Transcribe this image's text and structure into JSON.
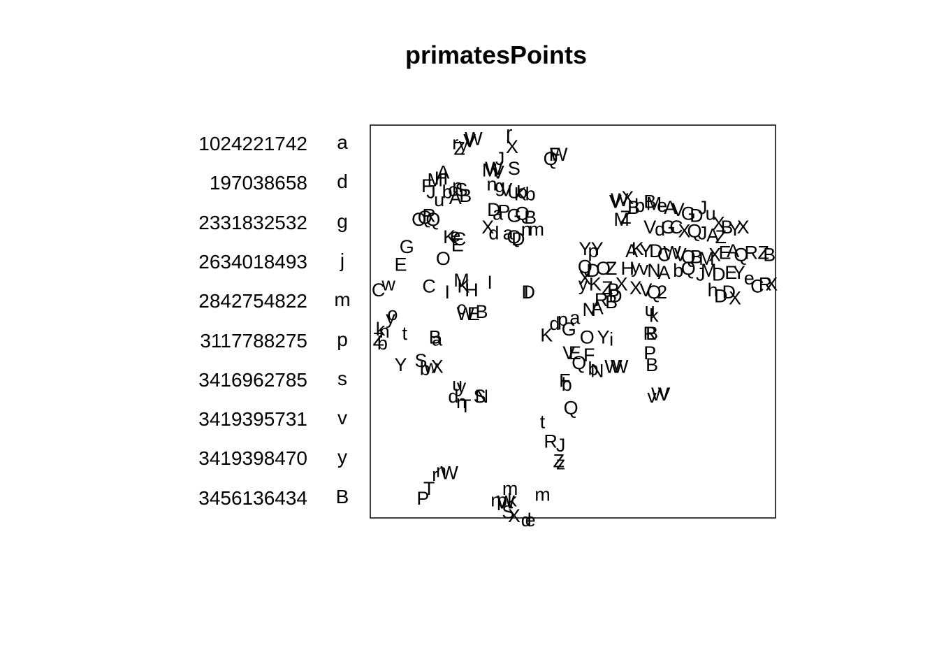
{
  "chart_data": {
    "type": "scatter",
    "title": "primatesPoints",
    "xlabel": "",
    "ylabel": "",
    "xlim": [
      0,
      100
    ],
    "ylim": [
      0,
      100
    ],
    "axes": "none",
    "grid": false,
    "legend": {
      "placement": "left",
      "ids": [
        "1024221742",
        "197038658",
        "2331832532",
        "2634018493",
        "2842754822",
        "3117788275",
        "3416962785",
        "3419395731",
        "3419398470",
        "3456136434"
      ],
      "codes": [
        "a",
        "d",
        "g",
        "j",
        "m",
        "p",
        "s",
        "v",
        "y",
        "B"
      ]
    },
    "points": [
      {
        "x": 34.3,
        "y": 98.0,
        "label": "r"
      },
      {
        "x": 35.0,
        "y": 94.5,
        "label": "X"
      },
      {
        "x": 34.0,
        "y": 97.0,
        "label": "I"
      },
      {
        "x": 21.0,
        "y": 95.5,
        "label": "r"
      },
      {
        "x": 22.0,
        "y": 94.0,
        "label": "Z"
      },
      {
        "x": 23.0,
        "y": 95.0,
        "label": "y"
      },
      {
        "x": 25.5,
        "y": 96.5,
        "label": "W"
      },
      {
        "x": 24.5,
        "y": 96.0,
        "label": "V"
      },
      {
        "x": 32.0,
        "y": 91.5,
        "label": "J"
      },
      {
        "x": 35.5,
        "y": 89.0,
        "label": "S"
      },
      {
        "x": 29.5,
        "y": 88.5,
        "label": "M"
      },
      {
        "x": 30.5,
        "y": 89.0,
        "label": "W"
      },
      {
        "x": 31.5,
        "y": 88.0,
        "label": "V"
      },
      {
        "x": 44.5,
        "y": 91.5,
        "label": "Q"
      },
      {
        "x": 45.5,
        "y": 92.5,
        "label": "F"
      },
      {
        "x": 46.5,
        "y": 92.5,
        "label": "W"
      },
      {
        "x": 18.0,
        "y": 88.0,
        "label": "A"
      },
      {
        "x": 17.5,
        "y": 86.5,
        "label": "H"
      },
      {
        "x": 16.0,
        "y": 86.0,
        "label": "M"
      },
      {
        "x": 14.0,
        "y": 84.5,
        "label": "F"
      },
      {
        "x": 15.0,
        "y": 83.0,
        "label": "J"
      },
      {
        "x": 17.0,
        "y": 81.0,
        "label": "u"
      },
      {
        "x": 21.0,
        "y": 81.5,
        "label": "A"
      },
      {
        "x": 19.0,
        "y": 83.0,
        "label": "b"
      },
      {
        "x": 20.5,
        "y": 83.5,
        "label": "o"
      },
      {
        "x": 23.5,
        "y": 82.0,
        "label": "B"
      },
      {
        "x": 22.5,
        "y": 83.5,
        "label": "S"
      },
      {
        "x": 21.5,
        "y": 84.5,
        "label": "n"
      },
      {
        "x": 30.0,
        "y": 85.0,
        "label": "n"
      },
      {
        "x": 32.0,
        "y": 84.5,
        "label": "g"
      },
      {
        "x": 33.5,
        "y": 83.5,
        "label": "V"
      },
      {
        "x": 35.5,
        "y": 83.0,
        "label": "U"
      },
      {
        "x": 37.5,
        "y": 83.0,
        "label": "o"
      },
      {
        "x": 39.5,
        "y": 82.5,
        "label": "b"
      },
      {
        "x": 37.0,
        "y": 82.5,
        "label": "K"
      },
      {
        "x": 13.5,
        "y": 76.5,
        "label": "Q"
      },
      {
        "x": 14.5,
        "y": 77.0,
        "label": "R"
      },
      {
        "x": 15.5,
        "y": 76.0,
        "label": "Q"
      },
      {
        "x": 12.0,
        "y": 76.0,
        "label": "O"
      },
      {
        "x": 30.5,
        "y": 78.5,
        "label": "D"
      },
      {
        "x": 31.5,
        "y": 77.5,
        "label": "a"
      },
      {
        "x": 33.0,
        "y": 78.0,
        "label": "P"
      },
      {
        "x": 35.5,
        "y": 77.0,
        "label": "G"
      },
      {
        "x": 37.5,
        "y": 77.5,
        "label": "Q"
      },
      {
        "x": 39.5,
        "y": 76.5,
        "label": "B"
      },
      {
        "x": 29.0,
        "y": 74.0,
        "label": "X"
      },
      {
        "x": 30.5,
        "y": 72.5,
        "label": "d"
      },
      {
        "x": 34.0,
        "y": 72.5,
        "label": "a"
      },
      {
        "x": 35.5,
        "y": 71.5,
        "label": "Q"
      },
      {
        "x": 36.5,
        "y": 71.0,
        "label": "D"
      },
      {
        "x": 38.5,
        "y": 73.5,
        "label": "n"
      },
      {
        "x": 41.0,
        "y": 73.5,
        "label": "m"
      },
      {
        "x": 19.5,
        "y": 71.5,
        "label": "K"
      },
      {
        "x": 21.0,
        "y": 72.0,
        "label": "e"
      },
      {
        "x": 22.0,
        "y": 71.0,
        "label": "C"
      },
      {
        "x": 21.5,
        "y": 69.5,
        "label": "E"
      },
      {
        "x": 9.0,
        "y": 69.0,
        "label": "G"
      },
      {
        "x": 18.0,
        "y": 66.0,
        "label": "O"
      },
      {
        "x": 7.5,
        "y": 64.5,
        "label": "E"
      },
      {
        "x": 2.0,
        "y": 58.0,
        "label": "C"
      },
      {
        "x": 4.5,
        "y": 59.5,
        "label": "w"
      },
      {
        "x": 14.5,
        "y": 59.0,
        "label": "C"
      },
      {
        "x": 19.0,
        "y": 57.5,
        "label": "I"
      },
      {
        "x": 22.5,
        "y": 60.5,
        "label": "M"
      },
      {
        "x": 23.0,
        "y": 59.0,
        "label": "K"
      },
      {
        "x": 25.0,
        "y": 58.0,
        "label": "H"
      },
      {
        "x": 29.5,
        "y": 60.0,
        "label": "I"
      },
      {
        "x": 39.0,
        "y": 57.5,
        "label": "D"
      },
      {
        "x": 38.5,
        "y": 57.5,
        "label": "I"
      },
      {
        "x": 22.5,
        "y": 53.5,
        "label": "c"
      },
      {
        "x": 23.5,
        "y": 52.0,
        "label": "W"
      },
      {
        "x": 25.5,
        "y": 52.0,
        "label": "E"
      },
      {
        "x": 27.5,
        "y": 52.5,
        "label": "B"
      },
      {
        "x": 5.5,
        "y": 52.0,
        "label": "o"
      },
      {
        "x": 5.0,
        "y": 51.0,
        "label": "y"
      },
      {
        "x": 2.5,
        "y": 48.0,
        "label": "k"
      },
      {
        "x": 3.5,
        "y": 47.5,
        "label": "n"
      },
      {
        "x": 8.5,
        "y": 47.0,
        "label": "t"
      },
      {
        "x": 2.0,
        "y": 45.5,
        "label": "Z"
      },
      {
        "x": 3.0,
        "y": 44.5,
        "label": "b"
      },
      {
        "x": 16.0,
        "y": 46.0,
        "label": "B"
      },
      {
        "x": 16.5,
        "y": 45.5,
        "label": "a"
      },
      {
        "x": 12.5,
        "y": 40.0,
        "label": "S"
      },
      {
        "x": 7.5,
        "y": 39.0,
        "label": "Y"
      },
      {
        "x": 13.5,
        "y": 38.0,
        "label": "b"
      },
      {
        "x": 15.0,
        "y": 38.5,
        "label": "w"
      },
      {
        "x": 16.5,
        "y": 38.5,
        "label": "X"
      },
      {
        "x": 22.5,
        "y": 33.5,
        "label": "y"
      },
      {
        "x": 21.5,
        "y": 34.0,
        "label": "u"
      },
      {
        "x": 20.5,
        "y": 31.0,
        "label": "d"
      },
      {
        "x": 22.5,
        "y": 29.5,
        "label": "n"
      },
      {
        "x": 23.5,
        "y": 28.5,
        "label": "T"
      },
      {
        "x": 27.5,
        "y": 31.0,
        "label": "N"
      },
      {
        "x": 27.0,
        "y": 31.0,
        "label": "S"
      },
      {
        "x": 43.5,
        "y": 46.5,
        "label": "K"
      },
      {
        "x": 45.5,
        "y": 49.5,
        "label": "d"
      },
      {
        "x": 47.5,
        "y": 50.5,
        "label": "p"
      },
      {
        "x": 50.5,
        "y": 51.0,
        "label": "a"
      },
      {
        "x": 49.0,
        "y": 48.0,
        "label": "G"
      },
      {
        "x": 53.5,
        "y": 46.0,
        "label": "O"
      },
      {
        "x": 57.5,
        "y": 46.0,
        "label": "Y"
      },
      {
        "x": 59.5,
        "y": 45.5,
        "label": "i"
      },
      {
        "x": 49.0,
        "y": 42.0,
        "label": "V"
      },
      {
        "x": 50.5,
        "y": 42.0,
        "label": "E"
      },
      {
        "x": 54.0,
        "y": 41.5,
        "label": "F"
      },
      {
        "x": 51.5,
        "y": 39.5,
        "label": "Q"
      },
      {
        "x": 55.0,
        "y": 38.0,
        "label": "b"
      },
      {
        "x": 56.0,
        "y": 37.5,
        "label": "N"
      },
      {
        "x": 60.0,
        "y": 38.5,
        "label": "W"
      },
      {
        "x": 61.5,
        "y": 38.5,
        "label": "W"
      },
      {
        "x": 48.0,
        "y": 35.0,
        "label": "F"
      },
      {
        "x": 48.5,
        "y": 34.0,
        "label": "b"
      },
      {
        "x": 49.5,
        "y": 28.0,
        "label": "Q"
      },
      {
        "x": 42.5,
        "y": 24.5,
        "label": "t"
      },
      {
        "x": 44.5,
        "y": 19.5,
        "label": "R"
      },
      {
        "x": 47.0,
        "y": 18.5,
        "label": "J"
      },
      {
        "x": 46.5,
        "y": 14.5,
        "label": "Z"
      },
      {
        "x": 47.0,
        "y": 14.0,
        "label": "z"
      },
      {
        "x": 53.0,
        "y": 68.5,
        "label": "Y"
      },
      {
        "x": 55.0,
        "y": 68.0,
        "label": "p"
      },
      {
        "x": 56.0,
        "y": 68.5,
        "label": "Y"
      },
      {
        "x": 53.0,
        "y": 64.0,
        "label": "Q"
      },
      {
        "x": 55.0,
        "y": 63.0,
        "label": "D"
      },
      {
        "x": 57.5,
        "y": 63.5,
        "label": "O"
      },
      {
        "x": 59.5,
        "y": 63.5,
        "label": "Z"
      },
      {
        "x": 53.0,
        "y": 61.0,
        "label": "X"
      },
      {
        "x": 55.5,
        "y": 59.5,
        "label": "K"
      },
      {
        "x": 58.5,
        "y": 58.5,
        "label": "Z"
      },
      {
        "x": 60.0,
        "y": 58.0,
        "label": "B"
      },
      {
        "x": 62.0,
        "y": 59.5,
        "label": "X"
      },
      {
        "x": 52.5,
        "y": 59.5,
        "label": "y"
      },
      {
        "x": 54.0,
        "y": 53.0,
        "label": "N"
      },
      {
        "x": 56.0,
        "y": 53.5,
        "label": "A"
      },
      {
        "x": 57.0,
        "y": 55.5,
        "label": "R"
      },
      {
        "x": 59.5,
        "y": 55.0,
        "label": "B"
      },
      {
        "x": 60.5,
        "y": 56.5,
        "label": "D"
      },
      {
        "x": 62.0,
        "y": 76.0,
        "label": "M"
      },
      {
        "x": 63.0,
        "y": 76.5,
        "label": "Z"
      },
      {
        "x": 60.5,
        "y": 80.5,
        "label": "V"
      },
      {
        "x": 61.5,
        "y": 81.0,
        "label": "W"
      },
      {
        "x": 63.5,
        "y": 81.5,
        "label": "X"
      },
      {
        "x": 65.0,
        "y": 79.0,
        "label": "B"
      },
      {
        "x": 66.5,
        "y": 79.5,
        "label": "b"
      },
      {
        "x": 69.0,
        "y": 80.5,
        "label": "B"
      },
      {
        "x": 70.0,
        "y": 80.0,
        "label": "M"
      },
      {
        "x": 72.0,
        "y": 79.5,
        "label": "e"
      },
      {
        "x": 74.0,
        "y": 79.0,
        "label": "A"
      },
      {
        "x": 76.0,
        "y": 78.5,
        "label": "V"
      },
      {
        "x": 78.5,
        "y": 77.5,
        "label": "G"
      },
      {
        "x": 80.5,
        "y": 77.0,
        "label": "D"
      },
      {
        "x": 82.0,
        "y": 79.0,
        "label": "J"
      },
      {
        "x": 84.0,
        "y": 77.5,
        "label": "u"
      },
      {
        "x": 86.0,
        "y": 75.0,
        "label": "X"
      },
      {
        "x": 88.0,
        "y": 74.0,
        "label": "B"
      },
      {
        "x": 90.0,
        "y": 73.5,
        "label": "Y"
      },
      {
        "x": 92.0,
        "y": 74.0,
        "label": "X"
      },
      {
        "x": 69.0,
        "y": 74.0,
        "label": "V"
      },
      {
        "x": 71.5,
        "y": 73.5,
        "label": "d"
      },
      {
        "x": 73.5,
        "y": 74.0,
        "label": "G"
      },
      {
        "x": 75.5,
        "y": 74.0,
        "label": "C"
      },
      {
        "x": 77.5,
        "y": 73.0,
        "label": "X"
      },
      {
        "x": 80.0,
        "y": 73.0,
        "label": "Q"
      },
      {
        "x": 82.0,
        "y": 72.5,
        "label": "J"
      },
      {
        "x": 84.5,
        "y": 72.0,
        "label": "A"
      },
      {
        "x": 86.5,
        "y": 71.5,
        "label": "Z"
      },
      {
        "x": 64.5,
        "y": 68.0,
        "label": "A"
      },
      {
        "x": 66.0,
        "y": 68.5,
        "label": "K"
      },
      {
        "x": 68.0,
        "y": 68.0,
        "label": "Y"
      },
      {
        "x": 70.5,
        "y": 68.0,
        "label": "D"
      },
      {
        "x": 72.5,
        "y": 67.0,
        "label": "C"
      },
      {
        "x": 74.5,
        "y": 67.5,
        "label": "W"
      },
      {
        "x": 76.5,
        "y": 67.0,
        "label": "V"
      },
      {
        "x": 78.5,
        "y": 66.5,
        "label": "Q"
      },
      {
        "x": 80.5,
        "y": 66.5,
        "label": "B"
      },
      {
        "x": 83.0,
        "y": 66.0,
        "label": "M"
      },
      {
        "x": 85.0,
        "y": 67.0,
        "label": "X"
      },
      {
        "x": 87.5,
        "y": 67.5,
        "label": "E"
      },
      {
        "x": 89.5,
        "y": 68.0,
        "label": "A"
      },
      {
        "x": 91.5,
        "y": 67.0,
        "label": "Q"
      },
      {
        "x": 94.0,
        "y": 67.5,
        "label": "R"
      },
      {
        "x": 97.0,
        "y": 67.5,
        "label": "Z"
      },
      {
        "x": 98.5,
        "y": 67.0,
        "label": "B"
      },
      {
        "x": 63.5,
        "y": 63.5,
        "label": "H"
      },
      {
        "x": 65.5,
        "y": 64.0,
        "label": "y"
      },
      {
        "x": 67.5,
        "y": 63.5,
        "label": "v"
      },
      {
        "x": 70.0,
        "y": 63.0,
        "label": "N"
      },
      {
        "x": 72.5,
        "y": 62.5,
        "label": "A"
      },
      {
        "x": 76.0,
        "y": 63.0,
        "label": "b"
      },
      {
        "x": 78.5,
        "y": 63.5,
        "label": "Q"
      },
      {
        "x": 81.5,
        "y": 62.0,
        "label": "J"
      },
      {
        "x": 83.5,
        "y": 63.0,
        "label": "M"
      },
      {
        "x": 86.0,
        "y": 62.0,
        "label": "D"
      },
      {
        "x": 89.0,
        "y": 62.5,
        "label": "E"
      },
      {
        "x": 91.0,
        "y": 62.5,
        "label": "Y"
      },
      {
        "x": 93.5,
        "y": 61.0,
        "label": "e"
      },
      {
        "x": 65.5,
        "y": 58.5,
        "label": "X"
      },
      {
        "x": 68.0,
        "y": 58.0,
        "label": "V"
      },
      {
        "x": 70.0,
        "y": 57.5,
        "label": "Q"
      },
      {
        "x": 72.0,
        "y": 57.5,
        "label": "2"
      },
      {
        "x": 84.5,
        "y": 58.0,
        "label": "h"
      },
      {
        "x": 86.5,
        "y": 56.5,
        "label": "D"
      },
      {
        "x": 88.5,
        "y": 57.5,
        "label": "D"
      },
      {
        "x": 90.0,
        "y": 56.0,
        "label": "X"
      },
      {
        "x": 95.5,
        "y": 59.0,
        "label": "C"
      },
      {
        "x": 97.5,
        "y": 59.5,
        "label": "R"
      },
      {
        "x": 99.0,
        "y": 59.5,
        "label": "X"
      },
      {
        "x": 69.0,
        "y": 53.0,
        "label": "u"
      },
      {
        "x": 70.0,
        "y": 51.5,
        "label": "k"
      },
      {
        "x": 69.0,
        "y": 47.0,
        "label": "R"
      },
      {
        "x": 69.5,
        "y": 47.0,
        "label": "B"
      },
      {
        "x": 69.0,
        "y": 42.0,
        "label": "P"
      },
      {
        "x": 69.5,
        "y": 39.0,
        "label": "B"
      },
      {
        "x": 69.5,
        "y": 31.0,
        "label": "v"
      },
      {
        "x": 71.5,
        "y": 31.5,
        "label": "W"
      },
      {
        "x": 72.5,
        "y": 31.5,
        "label": "V"
      },
      {
        "x": 16.0,
        "y": 11.0,
        "label": "r"
      },
      {
        "x": 17.5,
        "y": 12.0,
        "label": "n"
      },
      {
        "x": 19.5,
        "y": 11.5,
        "label": "W"
      },
      {
        "x": 14.5,
        "y": 7.5,
        "label": "T"
      },
      {
        "x": 13.0,
        "y": 5.0,
        "label": "P"
      },
      {
        "x": 34.5,
        "y": 7.5,
        "label": "m"
      },
      {
        "x": 42.5,
        "y": 6.0,
        "label": "m"
      },
      {
        "x": 31.0,
        "y": 4.5,
        "label": "n"
      },
      {
        "x": 32.5,
        "y": 4.5,
        "label": "p"
      },
      {
        "x": 33.5,
        "y": 4.0,
        "label": "W"
      },
      {
        "x": 35.0,
        "y": 4.5,
        "label": "k"
      },
      {
        "x": 34.0,
        "y": 1.5,
        "label": "S"
      },
      {
        "x": 35.5,
        "y": 0.5,
        "label": "X"
      },
      {
        "x": 38.5,
        "y": -0.5,
        "label": "d"
      },
      {
        "x": 39.5,
        "y": -0.5,
        "label": "e"
      }
    ]
  }
}
